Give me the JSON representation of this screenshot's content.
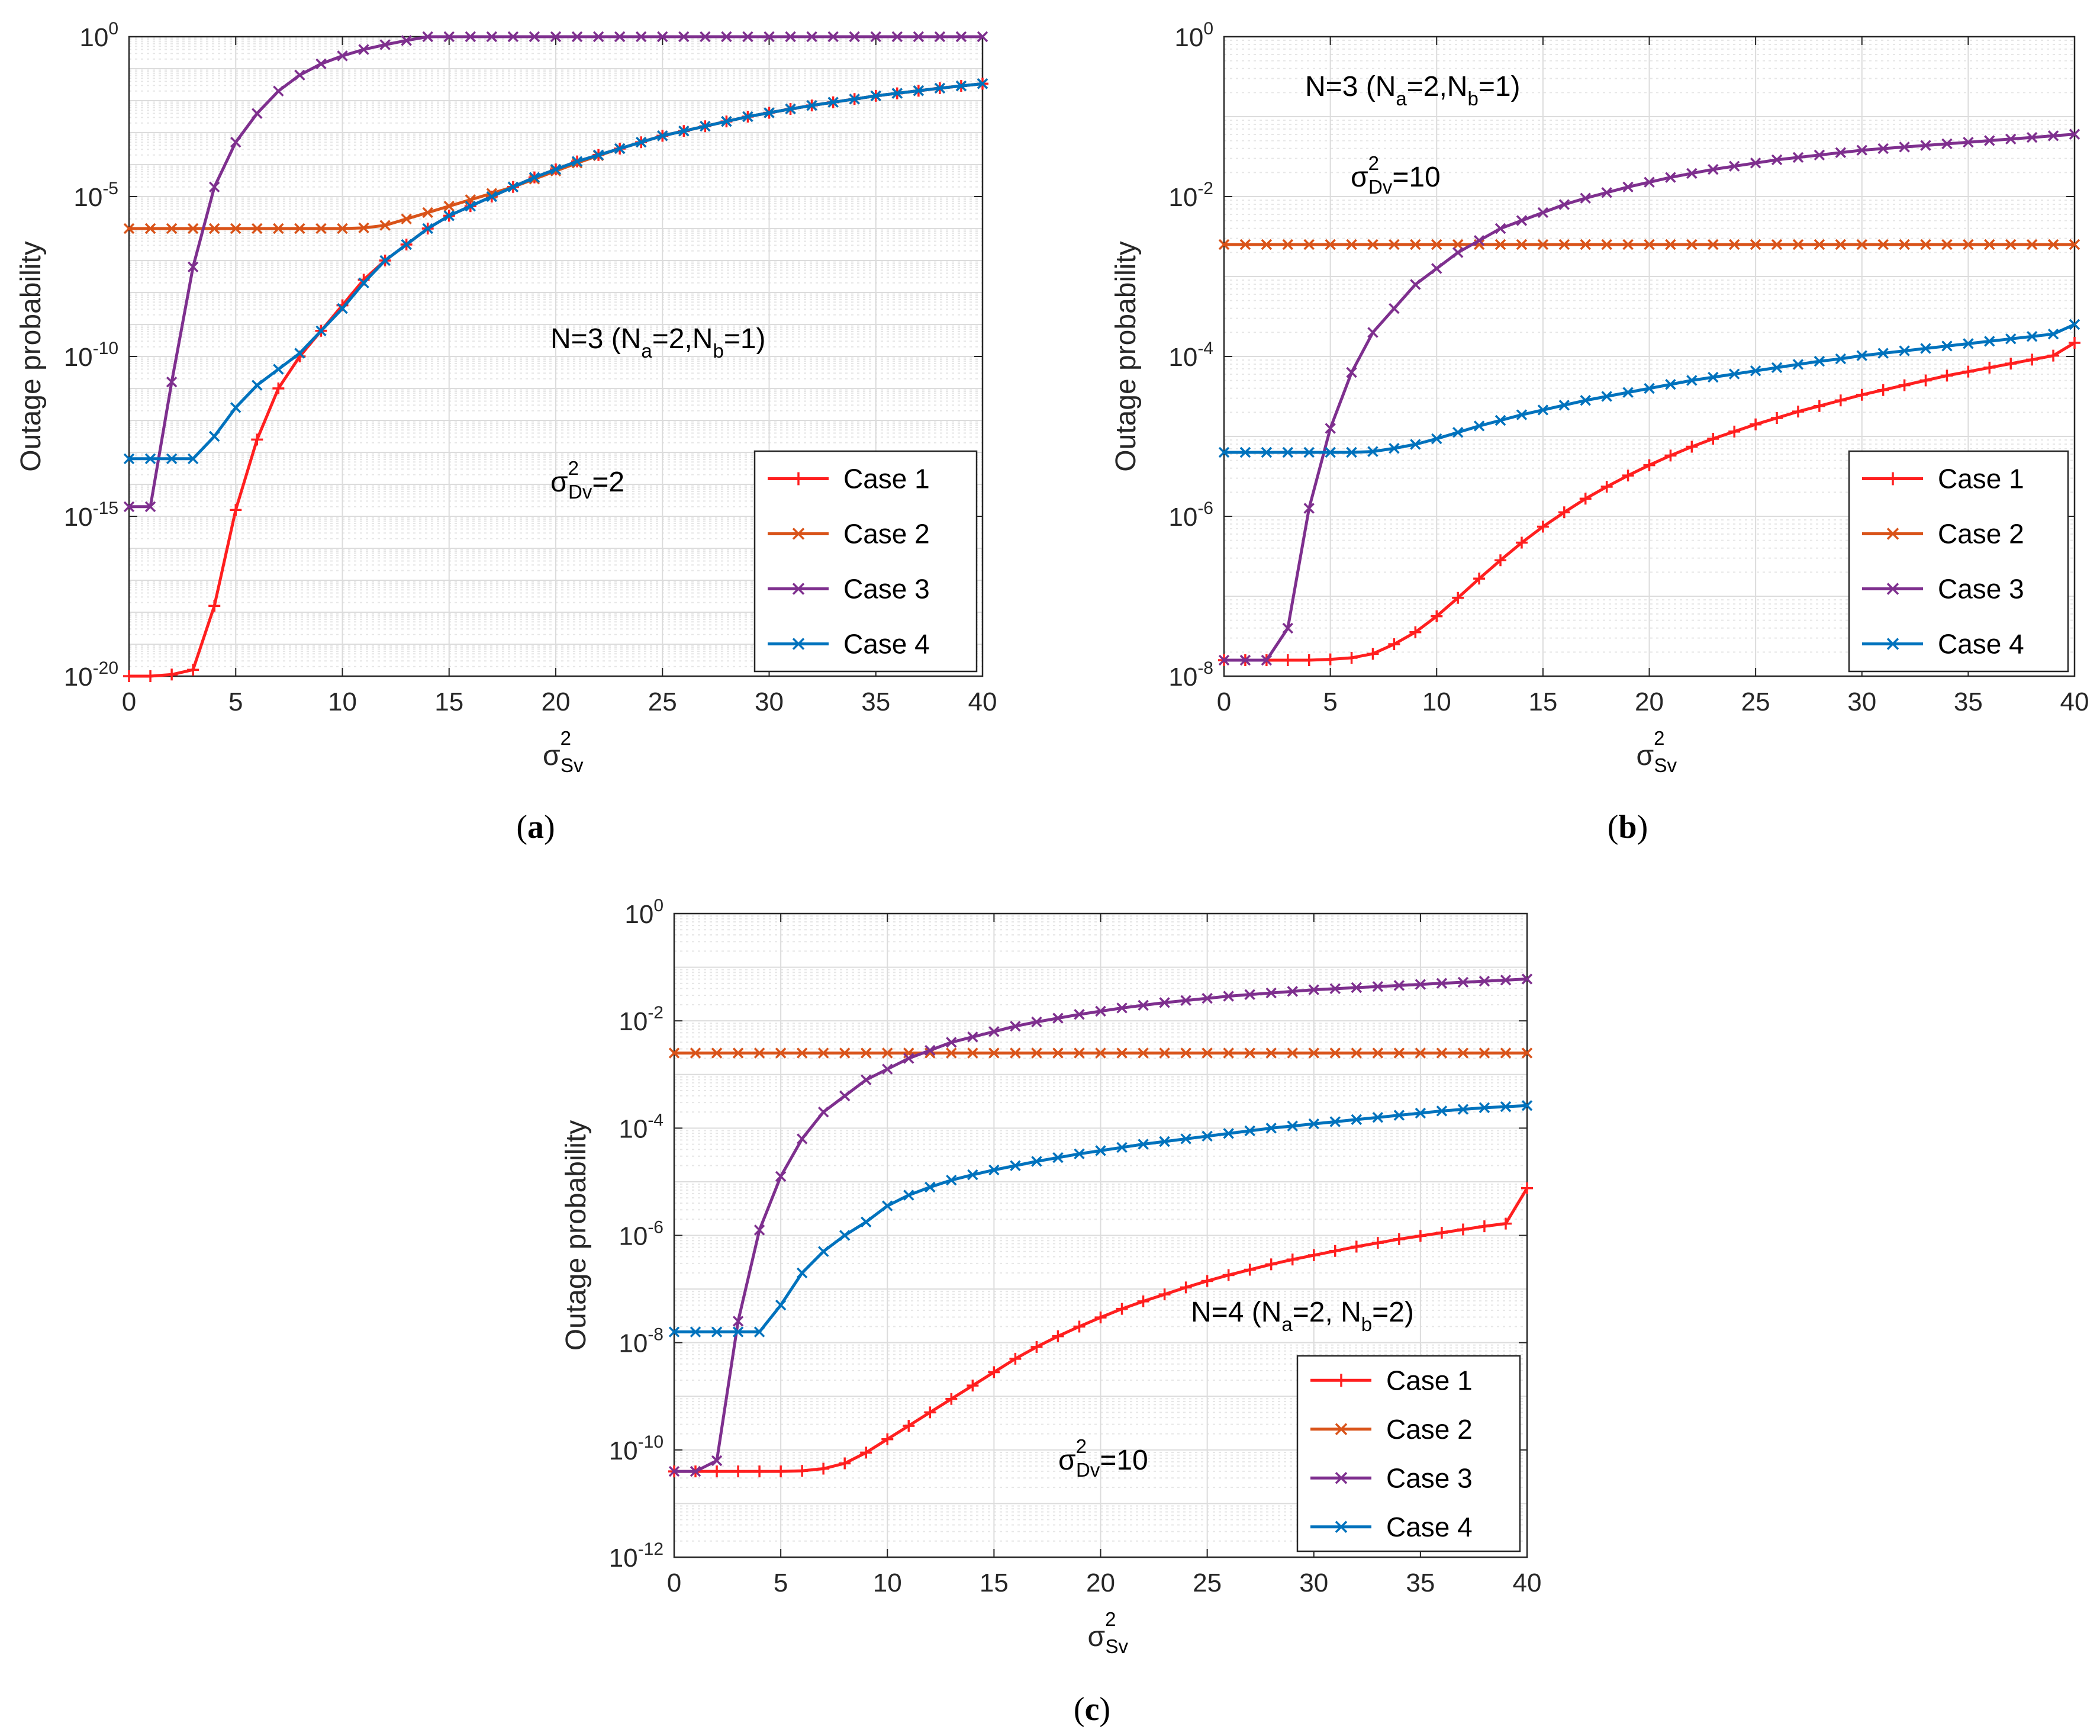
{
  "figure": {
    "colors": {
      "case1": "#ff1f1f",
      "case2": "#d95319",
      "case3": "#7e2f8e",
      "case4": "#0072bd"
    }
  },
  "chart_data": [
    {
      "panel": "a",
      "type": "line",
      "caption_letter": "a",
      "xlabel_main": "σ",
      "xlabel_sup": "2",
      "xlabel_sub": "Sv",
      "ylabel": "Outage probability",
      "xlim": [
        0,
        40
      ],
      "ylim_log10": [
        -20,
        0
      ],
      "xticks": [
        "0",
        "5",
        "10",
        "15",
        "20",
        "25",
        "30",
        "35",
        "40"
      ],
      "yticks": [
        {
          "base": "10",
          "exp": "0",
          "value_log10": 0
        },
        {
          "base": "10",
          "exp": "-5",
          "value_log10": -5
        },
        {
          "base": "10",
          "exp": "-10",
          "value_log10": -10
        },
        {
          "base": "10",
          "exp": "-15",
          "value_log10": -15
        },
        {
          "base": "10",
          "exp": "-20",
          "value_log10": -20
        }
      ],
      "annotations": [
        {
          "id": "n-label",
          "parts": [
            "N=3 (N",
            "a",
            "=2,N",
            "b",
            "=1)"
          ]
        },
        {
          "id": "sigma-label",
          "parts": [
            "σ",
            "2",
            "Dv",
            "=2"
          ]
        }
      ],
      "legend": [
        "Case 1",
        "Case 2",
        "Case 3",
        "Case 4"
      ],
      "x": [
        0,
        1,
        2,
        3,
        4,
        5,
        6,
        7,
        8,
        9,
        10,
        11,
        12,
        13,
        14,
        15,
        16,
        17,
        18,
        19,
        20,
        21,
        22,
        23,
        24,
        25,
        26,
        27,
        28,
        29,
        30,
        31,
        32,
        33,
        34,
        35,
        36,
        37,
        38,
        39,
        40
      ],
      "series": [
        {
          "name": "Case 1",
          "log10": [
            -20,
            -20,
            -19.95,
            -19.8,
            -17.8,
            -14.8,
            -12.6,
            -11,
            -10,
            -9.2,
            -8.4,
            -7.6,
            -7,
            -6.5,
            -6,
            -5.6,
            -5.3,
            -5,
            -4.7,
            -4.4,
            -4.15,
            -3.9,
            -3.7,
            -3.5,
            -3.3,
            -3.1,
            -2.95,
            -2.8,
            -2.65,
            -2.5,
            -2.38,
            -2.26,
            -2.15,
            -2.05,
            -1.95,
            -1.85,
            -1.77,
            -1.69,
            -1.61,
            -1.54,
            -1.47
          ]
        },
        {
          "name": "Case 2",
          "log10": [
            -6,
            -6,
            -6,
            -6,
            -6,
            -6,
            -6,
            -6,
            -6,
            -6,
            -6,
            -5.98,
            -5.9,
            -5.7,
            -5.5,
            -5.3,
            -5.1,
            -4.9,
            -4.7,
            -4.45,
            -4.2,
            -3.95,
            -3.72,
            -3.5,
            -3.3,
            -3.1,
            -2.95,
            -2.8,
            -2.65,
            -2.5,
            -2.38,
            -2.26,
            -2.15,
            -2.05,
            -1.95,
            -1.85,
            -1.77,
            -1.69,
            -1.61,
            -1.54,
            -1.47
          ]
        },
        {
          "name": "Case 3",
          "log10": [
            -14.7,
            -14.7,
            -10.8,
            -7.2,
            -4.7,
            -3.3,
            -2.4,
            -1.7,
            -1.2,
            -0.85,
            -0.6,
            -0.4,
            -0.25,
            -0.12,
            0.02,
            0.13,
            0.22,
            0.3,
            0.37,
            0.43,
            0.48,
            0.52,
            0.56,
            0.6,
            0.64,
            0.67,
            0.7,
            0.73,
            0.76,
            0.79,
            0.81,
            0.83,
            0.85,
            0.87,
            0.89,
            0.91,
            0.93,
            0.95,
            0.97,
            0.99,
            1.01
          ]
        },
        {
          "name": "Case 4",
          "log10": [
            -13.2,
            -13.2,
            -13.2,
            -13.2,
            -12.5,
            -11.6,
            -10.9,
            -10.4,
            -9.9,
            -9.2,
            -8.5,
            -7.7,
            -7,
            -6.5,
            -6,
            -5.6,
            -5.3,
            -5,
            -4.7,
            -4.4,
            -4.15,
            -3.9,
            -3.7,
            -3.5,
            -3.3,
            -3.1,
            -2.95,
            -2.8,
            -2.65,
            -2.5,
            -2.38,
            -2.26,
            -2.15,
            -2.05,
            -1.95,
            -1.85,
            -1.77,
            -1.69,
            -1.61,
            -1.54,
            -1.47
          ]
        }
      ]
    },
    {
      "panel": "b",
      "type": "line",
      "caption_letter": "b",
      "xlabel_main": "σ",
      "xlabel_sup": "2",
      "xlabel_sub": "Sv",
      "ylabel": "Outage probability",
      "xlim": [
        0,
        40
      ],
      "ylim_log10": [
        -8,
        0
      ],
      "xticks": [
        "0",
        "5",
        "10",
        "15",
        "20",
        "25",
        "30",
        "35",
        "40"
      ],
      "yticks": [
        {
          "base": "10",
          "exp": "0",
          "value_log10": 0
        },
        {
          "base": "10",
          "exp": "-2",
          "value_log10": -2
        },
        {
          "base": "10",
          "exp": "-4",
          "value_log10": -4
        },
        {
          "base": "10",
          "exp": "-6",
          "value_log10": -6
        },
        {
          "base": "10",
          "exp": "-8",
          "value_log10": -8
        }
      ],
      "annotations": [
        {
          "id": "n-label",
          "parts": [
            "N=3 (N",
            "a",
            "=2,N",
            "b",
            "=1)"
          ]
        },
        {
          "id": "sigma-label",
          "parts": [
            "σ",
            "2",
            "Dv",
            "=10"
          ]
        }
      ],
      "legend": [
        "Case 1",
        "Case 2",
        "Case 3",
        "Case 4"
      ],
      "x": [
        0,
        1,
        2,
        3,
        4,
        5,
        6,
        7,
        8,
        9,
        10,
        11,
        12,
        13,
        14,
        15,
        16,
        17,
        18,
        19,
        20,
        21,
        22,
        23,
        24,
        25,
        26,
        27,
        28,
        29,
        30,
        31,
        32,
        33,
        34,
        35,
        36,
        37,
        38,
        39,
        40
      ],
      "series": [
        {
          "name": "Case 1",
          "log10": [
            -7.8,
            -7.8,
            -7.8,
            -7.8,
            -7.8,
            -7.79,
            -7.77,
            -7.72,
            -7.6,
            -7.45,
            -7.25,
            -7.02,
            -6.78,
            -6.55,
            -6.33,
            -6.13,
            -5.95,
            -5.78,
            -5.63,
            -5.49,
            -5.36,
            -5.24,
            -5.13,
            -5.03,
            -4.94,
            -4.85,
            -4.77,
            -4.69,
            -4.62,
            -4.55,
            -4.48,
            -4.42,
            -4.36,
            -4.3,
            -4.24,
            -4.19,
            -4.14,
            -4.09,
            -4.04,
            -3.99,
            -3.83
          ]
        },
        {
          "name": "Case 2",
          "log10": [
            -2.6,
            -2.6,
            -2.6,
            -2.6,
            -2.6,
            -2.6,
            -2.6,
            -2.6,
            -2.6,
            -2.6,
            -2.6,
            -2.6,
            -2.6,
            -2.6,
            -2.6,
            -2.6,
            -2.6,
            -2.6,
            -2.6,
            -2.6,
            -2.6,
            -2.6,
            -2.6,
            -2.6,
            -2.6,
            -2.6,
            -2.6,
            -2.6,
            -2.6,
            -2.6,
            -2.6,
            -2.6,
            -2.6,
            -2.6,
            -2.6,
            -2.6,
            -2.6,
            -2.6,
            -2.6,
            -2.6,
            -2.6
          ]
        },
        {
          "name": "Case 3",
          "log10": [
            -7.8,
            -7.8,
            -7.8,
            -7.4,
            -5.9,
            -4.9,
            -4.2,
            -3.7,
            -3.4,
            -3.1,
            -2.9,
            -2.7,
            -2.55,
            -2.4,
            -2.3,
            -2.2,
            -2.1,
            -2.02,
            -1.95,
            -1.88,
            -1.82,
            -1.76,
            -1.71,
            -1.66,
            -1.62,
            -1.58,
            -1.54,
            -1.51,
            -1.48,
            -1.45,
            -1.42,
            -1.4,
            -1.38,
            -1.36,
            -1.34,
            -1.32,
            -1.3,
            -1.28,
            -1.26,
            -1.24,
            -1.22
          ]
        },
        {
          "name": "Case 4",
          "log10": [
            -5.2,
            -5.2,
            -5.2,
            -5.2,
            -5.2,
            -5.2,
            -5.2,
            -5.19,
            -5.15,
            -5.1,
            -5.03,
            -4.95,
            -4.87,
            -4.8,
            -4.73,
            -4.67,
            -4.61,
            -4.55,
            -4.5,
            -4.45,
            -4.4,
            -4.35,
            -4.3,
            -4.26,
            -4.22,
            -4.18,
            -4.14,
            -4.1,
            -4.06,
            -4.03,
            -3.99,
            -3.96,
            -3.93,
            -3.9,
            -3.87,
            -3.84,
            -3.81,
            -3.78,
            -3.75,
            -3.72,
            -3.6
          ]
        }
      ]
    },
    {
      "panel": "c",
      "type": "line",
      "caption_letter": "c",
      "xlabel_main": "σ",
      "xlabel_sup": "2",
      "xlabel_sub": "Sv",
      "ylabel": "Outage probability",
      "xlim": [
        0,
        40
      ],
      "ylim_log10": [
        -12,
        0
      ],
      "xticks": [
        "0",
        "5",
        "10",
        "15",
        "20",
        "25",
        "30",
        "35",
        "40"
      ],
      "yticks": [
        {
          "base": "10",
          "exp": "0",
          "value_log10": 0
        },
        {
          "base": "10",
          "exp": "-2",
          "value_log10": -2
        },
        {
          "base": "10",
          "exp": "-4",
          "value_log10": -4
        },
        {
          "base": "10",
          "exp": "-6",
          "value_log10": -6
        },
        {
          "base": "10",
          "exp": "-8",
          "value_log10": -8
        },
        {
          "base": "10",
          "exp": "-10",
          "value_log10": -10
        },
        {
          "base": "10",
          "exp": "-12",
          "value_log10": -12
        }
      ],
      "annotations": [
        {
          "id": "n-label",
          "parts": [
            "N=4 (N",
            "a",
            "=2, N",
            "b",
            "=2)"
          ]
        },
        {
          "id": "sigma-label",
          "parts": [
            "σ",
            "2",
            "Dv",
            "=10"
          ]
        }
      ],
      "legend": [
        "Case 1",
        "Case 2",
        "Case 3",
        "Case 4"
      ],
      "x": [
        0,
        1,
        2,
        3,
        4,
        5,
        6,
        7,
        8,
        9,
        10,
        11,
        12,
        13,
        14,
        15,
        16,
        17,
        18,
        19,
        20,
        21,
        22,
        23,
        24,
        25,
        26,
        27,
        28,
        29,
        30,
        31,
        32,
        33,
        34,
        35,
        36,
        37,
        38,
        39,
        40
      ],
      "series": [
        {
          "name": "Case 1",
          "log10": [
            -10.4,
            -10.4,
            -10.4,
            -10.4,
            -10.4,
            -10.4,
            -10.39,
            -10.35,
            -10.25,
            -10.05,
            -9.8,
            -9.55,
            -9.3,
            -9.05,
            -8.8,
            -8.55,
            -8.3,
            -8.08,
            -7.88,
            -7.7,
            -7.53,
            -7.37,
            -7.23,
            -7.1,
            -6.97,
            -6.85,
            -6.74,
            -6.64,
            -6.54,
            -6.45,
            -6.37,
            -6.29,
            -6.21,
            -6.14,
            -6.07,
            -6.01,
            -5.95,
            -5.89,
            -5.83,
            -5.78,
            -5.12
          ]
        },
        {
          "name": "Case 2",
          "log10": [
            -2.6,
            -2.6,
            -2.6,
            -2.6,
            -2.6,
            -2.6,
            -2.6,
            -2.6,
            -2.6,
            -2.6,
            -2.6,
            -2.6,
            -2.6,
            -2.6,
            -2.6,
            -2.6,
            -2.6,
            -2.6,
            -2.6,
            -2.6,
            -2.6,
            -2.6,
            -2.6,
            -2.6,
            -2.6,
            -2.6,
            -2.6,
            -2.6,
            -2.6,
            -2.6,
            -2.6,
            -2.6,
            -2.6,
            -2.6,
            -2.6,
            -2.6,
            -2.6,
            -2.6,
            -2.6,
            -2.6,
            -2.6
          ]
        },
        {
          "name": "Case 3",
          "log10": [
            -10.4,
            -10.4,
            -10.2,
            -7.6,
            -5.9,
            -4.9,
            -4.2,
            -3.7,
            -3.4,
            -3.1,
            -2.9,
            -2.7,
            -2.55,
            -2.4,
            -2.3,
            -2.2,
            -2.1,
            -2.02,
            -1.95,
            -1.88,
            -1.82,
            -1.76,
            -1.71,
            -1.66,
            -1.62,
            -1.58,
            -1.54,
            -1.51,
            -1.48,
            -1.45,
            -1.42,
            -1.4,
            -1.38,
            -1.36,
            -1.34,
            -1.32,
            -1.3,
            -1.28,
            -1.26,
            -1.24,
            -1.22
          ]
        },
        {
          "name": "Case 4",
          "log10": [
            -7.8,
            -7.8,
            -7.8,
            -7.8,
            -7.8,
            -7.3,
            -6.7,
            -6.3,
            -6,
            -5.75,
            -5.45,
            -5.25,
            -5.1,
            -4.97,
            -4.87,
            -4.78,
            -4.7,
            -4.62,
            -4.55,
            -4.48,
            -4.42,
            -4.36,
            -4.3,
            -4.25,
            -4.2,
            -4.15,
            -4.1,
            -4.05,
            -4,
            -3.96,
            -3.92,
            -3.88,
            -3.84,
            -3.8,
            -3.76,
            -3.72,
            -3.68,
            -3.65,
            -3.62,
            -3.6,
            -3.58
          ]
        }
      ]
    }
  ]
}
